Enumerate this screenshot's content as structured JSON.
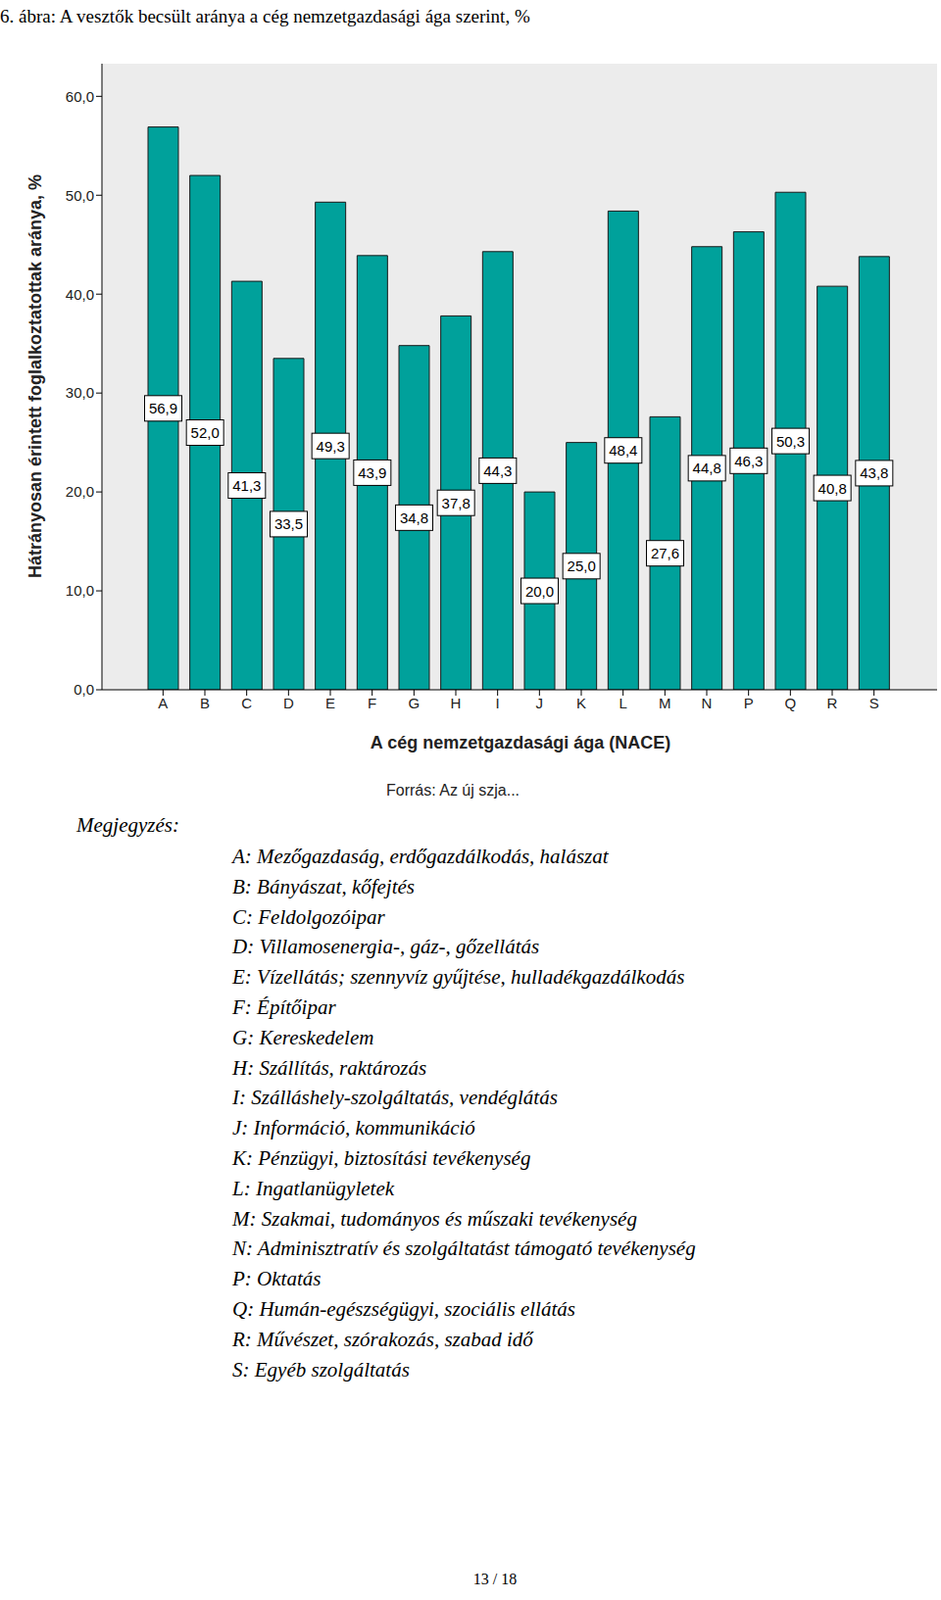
{
  "chart_data": {
    "type": "bar",
    "title": "6. ábra: A vesztők becsült aránya a cég nemzetgazdasági ága szerint, %",
    "y_label": "Hátrányosan érintett foglalkoztatottak aránya, %",
    "x_label": "A cég nemzetgazdasági ága (NACE)",
    "source": "Forrás: Az új szja...",
    "categories": [
      "A",
      "B",
      "C",
      "D",
      "E",
      "F",
      "G",
      "H",
      "I",
      "J",
      "K",
      "L",
      "M",
      "N",
      "P",
      "Q",
      "R",
      "S"
    ],
    "values": [
      56.9,
      52.0,
      41.3,
      33.5,
      49.3,
      43.9,
      34.8,
      37.8,
      44.3,
      20.0,
      25.0,
      48.4,
      27.6,
      44.8,
      46.3,
      50.3,
      40.8,
      43.8
    ],
    "value_labels": [
      "56,9",
      "52,0",
      "41,3",
      "33,5",
      "49,3",
      "43,9",
      "34,8",
      "37,8",
      "44,3",
      "20,0",
      "25,0",
      "48,4",
      "27,6",
      "44,8",
      "46,3",
      "50,3",
      "40,8",
      "43,8"
    ],
    "color": "#00a19b",
    "ylim": [
      0,
      63.3
    ],
    "yticks": [
      {
        "value": 0,
        "label": "0,0"
      },
      {
        "value": 10,
        "label": "10,0"
      },
      {
        "value": 20,
        "label": "20,0"
      },
      {
        "value": 30,
        "label": "30,0"
      },
      {
        "value": 40,
        "label": "40,0"
      },
      {
        "value": 50,
        "label": "50,0"
      },
      {
        "value": 60,
        "label": "60,0"
      }
    ],
    "grid": false,
    "data_labels": true
  },
  "note": {
    "heading": "Megjegyzés:",
    "items": [
      "A: Mezőgazdaság, erdőgazdálkodás, halászat",
      "B: Bányászat, kőfejtés",
      "C: Feldolgozóipar",
      "D: Villamosenergia-, gáz-, gőzellátás",
      "E: Vízellátás; szennyvíz gyűjtése, hulladékgazdálkodás",
      "F: Építőipar",
      "G: Kereskedelem",
      "H: Szállítás, raktározás",
      "I: Szálláshely-szolgáltatás, vendéglátás",
      "J: Információ, kommunikáció",
      "K: Pénzügyi, biztosítási tevékenység",
      "L: Ingatlanügyletek",
      "M: Szakmai, tudományos és műszaki tevékenység",
      "N: Adminisztratív és szolgáltatást támogató tevékenység",
      "P: Oktatás",
      "Q: Humán-egészségügyi, szociális ellátás",
      "R: Művészet, szórakozás, szabad idő",
      "S: Egyéb szolgáltatás"
    ]
  },
  "page": "13 / 18"
}
